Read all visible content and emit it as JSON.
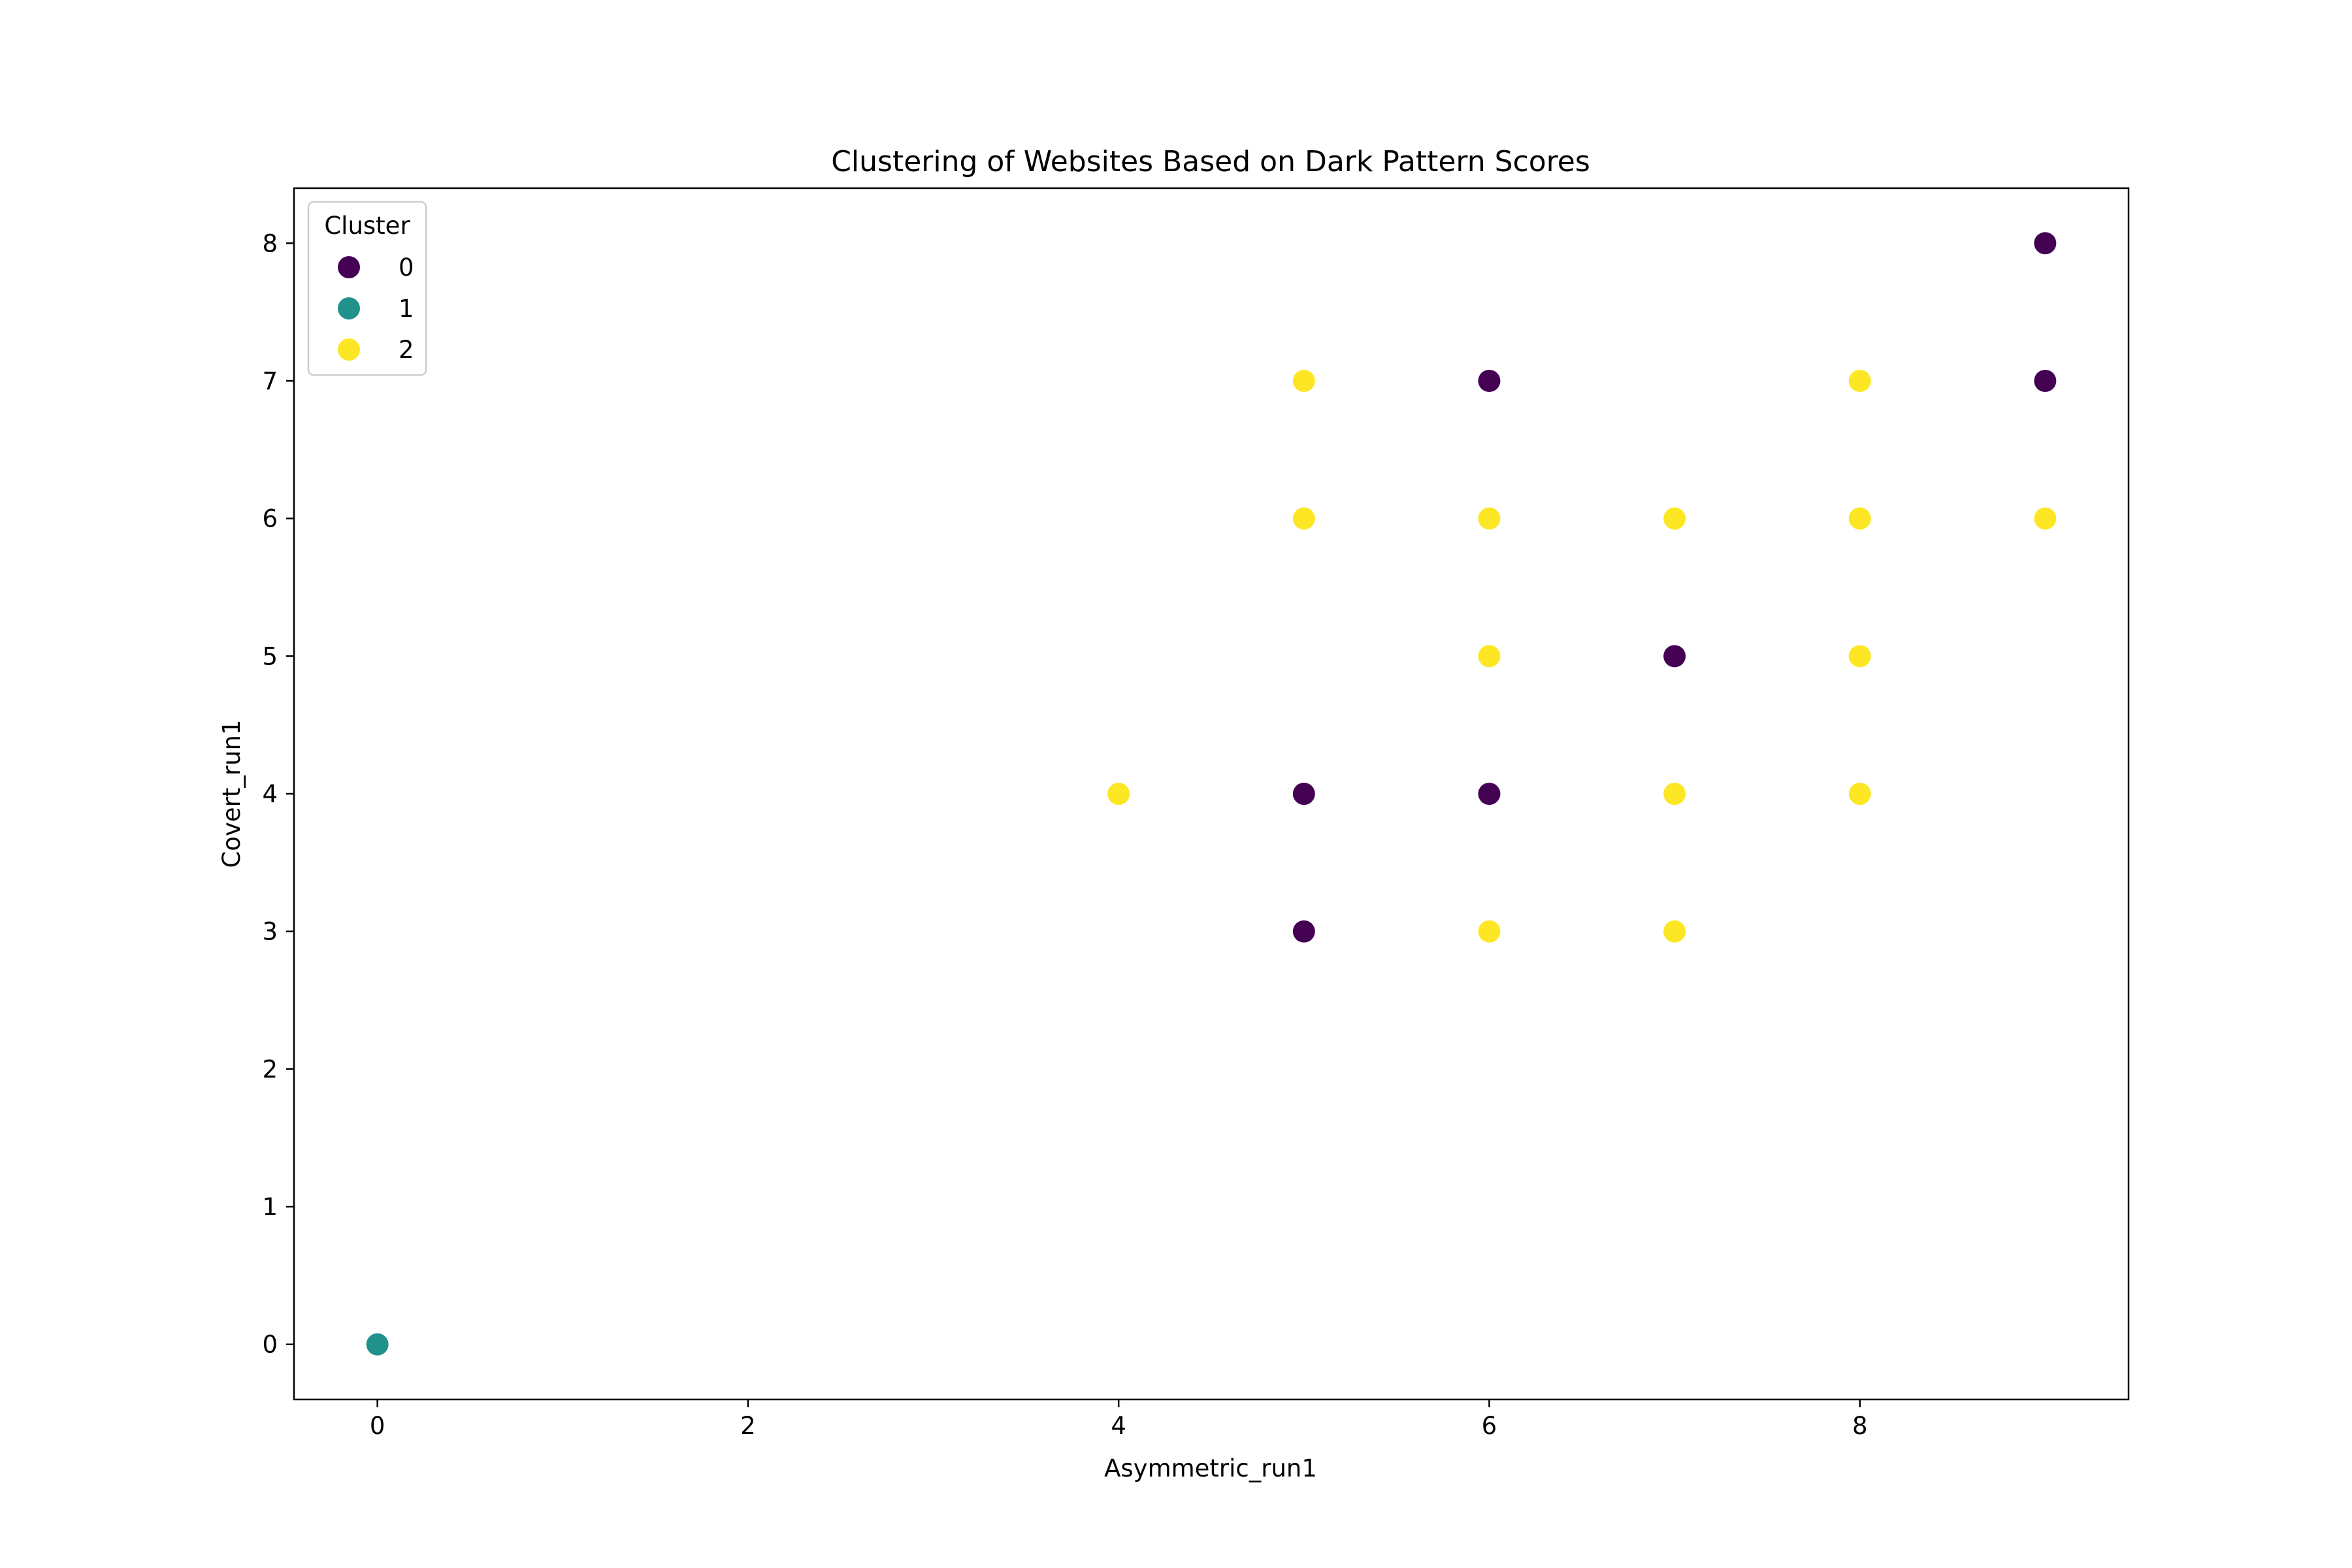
{
  "chart_data": {
    "type": "scatter",
    "title": "Clustering of Websites Based on Dark Pattern Scores",
    "xlabel": "Asymmetric_run1",
    "ylabel": "Covert_run1",
    "xlim": [
      -0.45,
      9.45
    ],
    "ylim": [
      -0.4,
      8.4
    ],
    "xticks": [
      0,
      2,
      4,
      6,
      8
    ],
    "yticks": [
      0,
      1,
      2,
      3,
      4,
      5,
      6,
      7,
      8
    ],
    "grid": false,
    "legend": {
      "title": "Cluster",
      "placement": "top-left",
      "entries": [
        "0",
        "1",
        "2"
      ]
    },
    "series": [
      {
        "name": "0",
        "color": "#440154",
        "points": [
          [
            9,
            8
          ],
          [
            9,
            7
          ],
          [
            6,
            7
          ],
          [
            7,
            5
          ],
          [
            5,
            4
          ],
          [
            6,
            4
          ],
          [
            5,
            3
          ]
        ]
      },
      {
        "name": "1",
        "color": "#21918c",
        "points": [
          [
            0,
            0
          ]
        ]
      },
      {
        "name": "2",
        "color": "#fde725",
        "points": [
          [
            5,
            7
          ],
          [
            8,
            7
          ],
          [
            5,
            6
          ],
          [
            6,
            6
          ],
          [
            7,
            6
          ],
          [
            8,
            6
          ],
          [
            9,
            6
          ],
          [
            6,
            5
          ],
          [
            8,
            5
          ],
          [
            4,
            4
          ],
          [
            7,
            4
          ],
          [
            8,
            4
          ],
          [
            6,
            3
          ],
          [
            7,
            3
          ]
        ]
      }
    ]
  }
}
